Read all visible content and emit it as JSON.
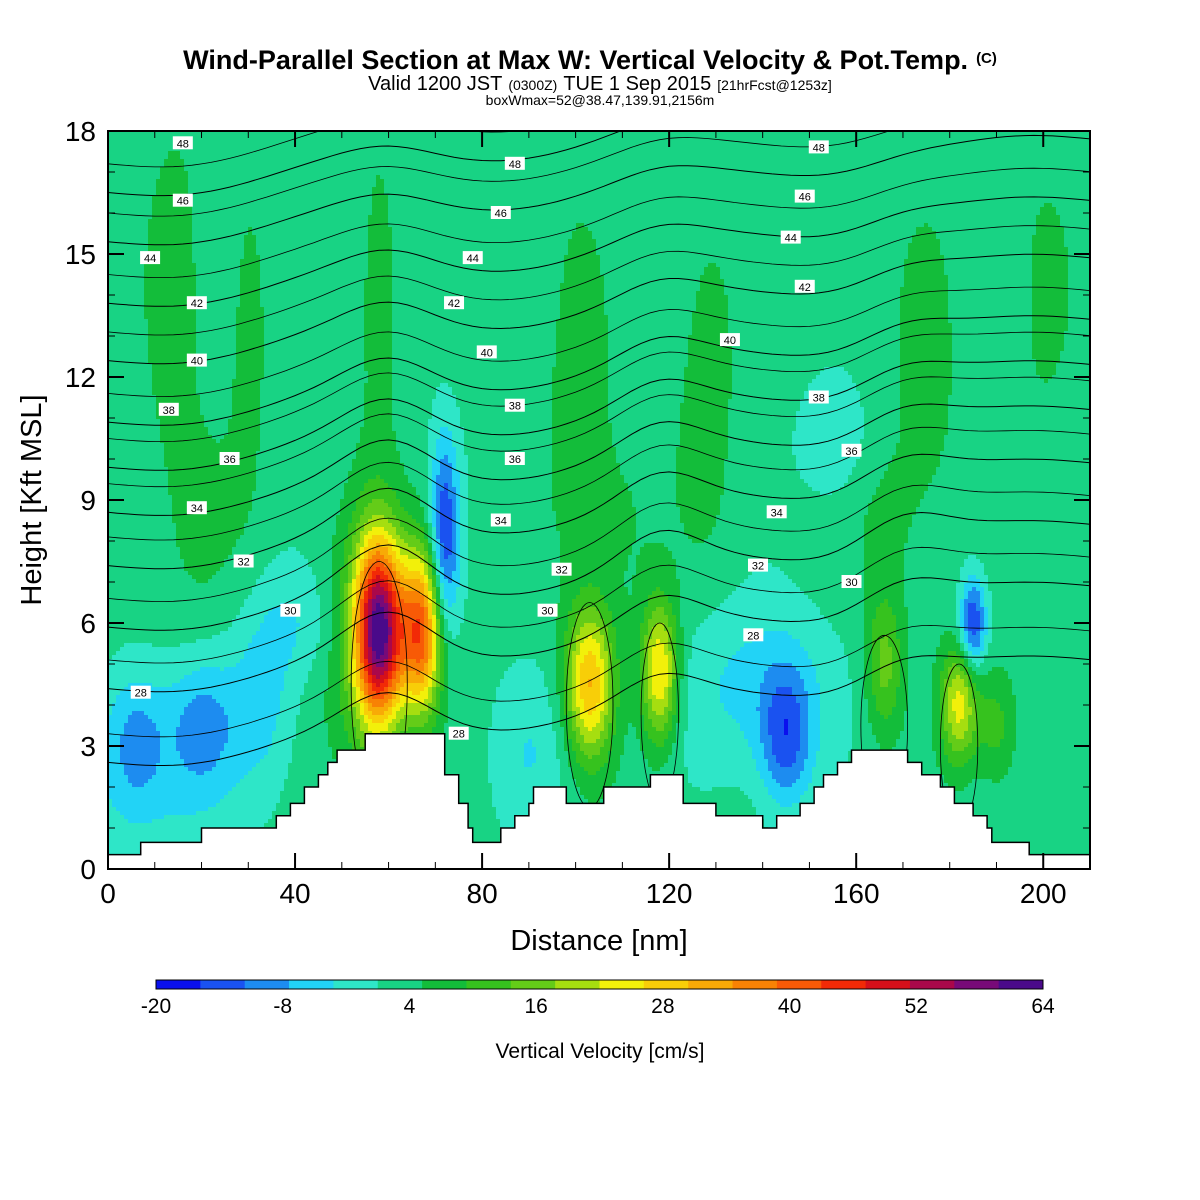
{
  "header": {
    "title_main": "Wind-Parallel Section at Max W: Vertical Velocity & Pot.Temp.",
    "title_mark": "(C)",
    "sub_a": "Valid 1200 JST",
    "sub_b": "(0300Z)",
    "sub_c": "TUE 1 Sep 2015",
    "sub_d": "[21hrFcst@1253z]",
    "line3": "boxWmax=52@38.47,139.91,2156m"
  },
  "chart_data": {
    "type": "heatmap",
    "x_label": "Distance [nm]",
    "y_label": "Height [Kft MSL]",
    "x_range": [
      0,
      210
    ],
    "y_range": [
      0,
      18
    ],
    "x_ticks": [
      "0",
      "40",
      "80",
      "120",
      "160",
      "200"
    ],
    "y_ticks": [
      "0",
      "3",
      "6",
      "9",
      "12",
      "15",
      "18"
    ],
    "colorbar_label": "Vertical Velocity [cm/s]",
    "colorbar_ticks": [
      "-20",
      "-8",
      "4",
      "16",
      "28",
      "40",
      "52",
      "64"
    ],
    "colorbar_range": [
      -20,
      64
    ],
    "colorbar_step": 4,
    "colorbar_colors": [
      "#0a10ee",
      "#1a52f0",
      "#1d8cf0",
      "#22d3f6",
      "#2ee6c8",
      "#18d384",
      "#13bd3a",
      "#36c21e",
      "#64cc18",
      "#a6de10",
      "#f2f00a",
      "#f8ce08",
      "#f8aa06",
      "#f88204",
      "#f85a06",
      "#f22a06",
      "#d6101a",
      "#aa084a",
      "#780a78",
      "#4a0a8a"
    ],
    "terrain_height_kft": [
      [
        0,
        0.35
      ],
      [
        7,
        0.35
      ],
      [
        7,
        0.65
      ],
      [
        20,
        0.65
      ],
      [
        20,
        1.0
      ],
      [
        36,
        1.0
      ],
      [
        36,
        1.3
      ],
      [
        39,
        1.3
      ],
      [
        39,
        1.6
      ],
      [
        42,
        1.6
      ],
      [
        42,
        2.0
      ],
      [
        45,
        2.0
      ],
      [
        45,
        2.3
      ],
      [
        47,
        2.3
      ],
      [
        47,
        2.6
      ],
      [
        49,
        2.6
      ],
      [
        49,
        2.9
      ],
      [
        55,
        2.9
      ],
      [
        55,
        3.3
      ],
      [
        72,
        3.3
      ],
      [
        72,
        2.3
      ],
      [
        75,
        2.3
      ],
      [
        75,
        1.6
      ],
      [
        77,
        1.6
      ],
      [
        77,
        1.0
      ],
      [
        78,
        1.0
      ],
      [
        78,
        0.65
      ],
      [
        84,
        0.65
      ],
      [
        84,
        1.0
      ],
      [
        87,
        1.0
      ],
      [
        87,
        1.3
      ],
      [
        90,
        1.3
      ],
      [
        90,
        1.6
      ],
      [
        91,
        1.6
      ],
      [
        91,
        2.0
      ],
      [
        98,
        2.0
      ],
      [
        98,
        1.6
      ],
      [
        106,
        1.6
      ],
      [
        106,
        2.0
      ],
      [
        116,
        2.0
      ],
      [
        116,
        2.3
      ],
      [
        123,
        2.3
      ],
      [
        123,
        1.6
      ],
      [
        130,
        1.6
      ],
      [
        130,
        1.3
      ],
      [
        140,
        1.3
      ],
      [
        140,
        1.0
      ],
      [
        143,
        1.0
      ],
      [
        143,
        1.3
      ],
      [
        148,
        1.3
      ],
      [
        148,
        1.6
      ],
      [
        151,
        1.6
      ],
      [
        151,
        2.0
      ],
      [
        153,
        2.0
      ],
      [
        153,
        2.3
      ],
      [
        156,
        2.3
      ],
      [
        156,
        2.6
      ],
      [
        159,
        2.6
      ],
      [
        159,
        2.9
      ],
      [
        171,
        2.9
      ],
      [
        171,
        2.6
      ],
      [
        174,
        2.6
      ],
      [
        174,
        2.3
      ],
      [
        178,
        2.3
      ],
      [
        178,
        2.0
      ],
      [
        181,
        2.0
      ],
      [
        181,
        1.6
      ],
      [
        185,
        1.6
      ],
      [
        185,
        1.3
      ],
      [
        188,
        1.3
      ],
      [
        188,
        1.0
      ],
      [
        189,
        1.0
      ],
      [
        189,
        0.65
      ],
      [
        197,
        0.65
      ],
      [
        197,
        0.35
      ],
      [
        210,
        0.35
      ]
    ],
    "w_field_cm_s": [
      {
        "x": 58,
        "y": 5.8,
        "sx": 3.6,
        "sy": 1.6,
        "w": 52
      },
      {
        "x": 67,
        "y": 5.8,
        "sx": 3.2,
        "sy": 1.4,
        "w": 36
      },
      {
        "x": 103,
        "y": 4.5,
        "sx": 3.6,
        "sy": 1.3,
        "w": 26
      },
      {
        "x": 118,
        "y": 4.8,
        "sx": 2.8,
        "sy": 1.2,
        "w": 24
      },
      {
        "x": 182,
        "y": 4.0,
        "sx": 2.8,
        "sy": 1.0,
        "w": 20
      },
      {
        "x": 166,
        "y": 5.0,
        "sx": 2.8,
        "sy": 1.2,
        "w": 12
      },
      {
        "x": 190,
        "y": 3.5,
        "sx": 3.0,
        "sy": 1.0,
        "w": 8
      },
      {
        "x": 54,
        "y": 5.5,
        "sx": 5.5,
        "sy": 2.2,
        "w": 8
      },
      {
        "x": 72,
        "y": 8.0,
        "sx": 2.2,
        "sy": 1.8,
        "w": -18
      },
      {
        "x": 185,
        "y": 6.0,
        "sx": 2.0,
        "sy": 0.8,
        "w": -18
      },
      {
        "x": 145,
        "y": 3.2,
        "sx": 4.0,
        "sy": 1.2,
        "w": -14
      },
      {
        "x": 20,
        "y": 3.5,
        "sx": 5.5,
        "sy": 1.2,
        "w": -11
      },
      {
        "x": 6,
        "y": 3.2,
        "sx": 5.0,
        "sy": 1.2,
        "w": -11
      },
      {
        "x": 33,
        "y": 4.0,
        "sx": 5.0,
        "sy": 1.5,
        "w": -7
      },
      {
        "x": 138,
        "y": 4.5,
        "sx": 12.0,
        "sy": 1.5,
        "w": -7
      },
      {
        "x": 155,
        "y": 10.5,
        "sx": 5.0,
        "sy": 1.0,
        "w": -6
      },
      {
        "x": 90,
        "y": 2.8,
        "sx": 6.0,
        "sy": 1.5,
        "w": -5
      },
      {
        "x": 10,
        "y": 1.5,
        "sx": 12.0,
        "sy": 1.0,
        "w": -4
      },
      {
        "x": 40,
        "y": 6.0,
        "sx": 7.0,
        "sy": 1.0,
        "w": -5
      },
      {
        "x": 14,
        "y": 14.0,
        "sx": 4.0,
        "sy": 3.0,
        "w": 5
      },
      {
        "x": 30,
        "y": 13.0,
        "sx": 3.0,
        "sy": 3.0,
        "w": 4
      },
      {
        "x": 58,
        "y": 14.0,
        "sx": 4.0,
        "sy": 3.0,
        "w": 4
      },
      {
        "x": 100,
        "y": 12.0,
        "sx": 5.0,
        "sy": 3.5,
        "w": 4
      },
      {
        "x": 128,
        "y": 12.0,
        "sx": 5.0,
        "sy": 3.5,
        "w": 4
      },
      {
        "x": 175,
        "y": 12.0,
        "sx": 5.0,
        "sy": 3.0,
        "w": 4
      },
      {
        "x": 200,
        "y": 14.0,
        "sx": 5.0,
        "sy": 3.0,
        "w": 3
      },
      {
        "x": 110,
        "y": 8.5,
        "sx": 6.0,
        "sy": 2.0,
        "w": 3
      },
      {
        "x": 20,
        "y": 8.5,
        "sx": 6.0,
        "sy": 2.0,
        "w": 3
      },
      {
        "x": 166,
        "y": 8.5,
        "sx": 5.0,
        "sy": 1.5,
        "w": 3
      }
    ],
    "theta_contours": [
      {
        "label": "28",
        "base": 2.6,
        "labels_at": [
          [
            7,
            4.3
          ],
          [
            75,
            3.3
          ],
          [
            138,
            5.7
          ]
        ]
      },
      {
        "label": "30",
        "base": 4.4,
        "labels_at": [
          [
            39,
            6.3
          ],
          [
            94,
            6.3
          ],
          [
            159,
            7.0
          ]
        ]
      },
      {
        "label": "32",
        "base": 5.9,
        "labels_at": [
          [
            29,
            7.5
          ],
          [
            97,
            7.3
          ],
          [
            139,
            7.4
          ]
        ]
      },
      {
        "label": "34",
        "base": 7.4,
        "labels_at": [
          [
            19,
            8.8
          ],
          [
            84,
            8.5
          ],
          [
            143,
            8.7
          ]
        ]
      },
      {
        "label": "36",
        "base": 8.7,
        "labels_at": [
          [
            26,
            10.0
          ],
          [
            87,
            10.0
          ],
          [
            159,
            10.2
          ]
        ]
      },
      {
        "label": "38",
        "base": 9.8,
        "labels_at": [
          [
            13,
            11.2
          ],
          [
            87,
            11.3
          ],
          [
            152,
            11.5
          ]
        ]
      },
      {
        "label": "40",
        "base": 10.9,
        "labels_at": [
          [
            19,
            12.4
          ],
          [
            81,
            12.6
          ],
          [
            133,
            12.9
          ]
        ]
      },
      {
        "label": "42",
        "base": 12.4,
        "labels_at": [
          [
            19,
            13.8
          ],
          [
            74,
            13.8
          ],
          [
            149,
            14.2
          ]
        ]
      },
      {
        "label": "44",
        "base": 13.8,
        "labels_at": [
          [
            9,
            14.9
          ],
          [
            78,
            14.9
          ],
          [
            146,
            15.4
          ]
        ]
      },
      {
        "label": "46",
        "base": 15.3,
        "labels_at": [
          [
            16,
            16.3
          ],
          [
            84,
            16.0
          ],
          [
            149,
            16.4
          ]
        ]
      },
      {
        "label": "48",
        "base": 16.5,
        "labels_at": [
          [
            16,
            17.7
          ],
          [
            87,
            17.2
          ],
          [
            152,
            17.6
          ]
        ]
      }
    ]
  }
}
